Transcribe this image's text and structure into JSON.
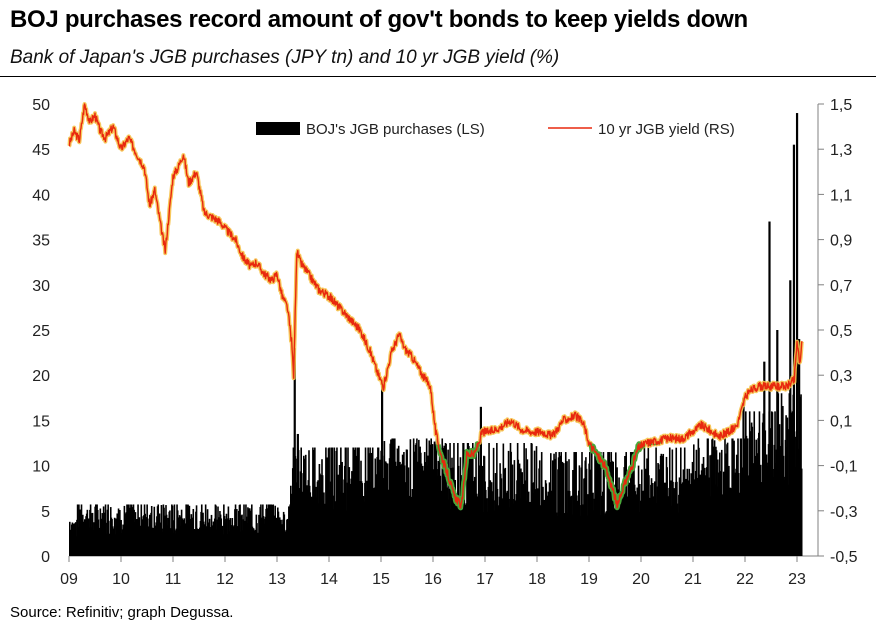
{
  "title": "BOJ purchases record amount of gov't bonds to keep yields down",
  "subtitle": "Bank of Japan's JGB purchases (JPY tn) and 10 yr JGB yield (%)",
  "source": "Source: Refinitiv; graph Degussa.",
  "colors": {
    "bars": "#000000",
    "line": "#e8280e",
    "line_glow": "#f6c24a",
    "line_glow_below_zero": "#49a83a",
    "axis": "#808080"
  },
  "chart_data": {
    "type": "bar+line",
    "legend": [
      {
        "key": "purchases",
        "label": "BOJ's JGB purchases (LS)"
      },
      {
        "key": "yield",
        "label": "10 yr JGB yield (RS)"
      }
    ],
    "legend_position": "top",
    "x_ticks": [
      "09",
      "10",
      "11",
      "12",
      "13",
      "14",
      "15",
      "16",
      "17",
      "18",
      "19",
      "20",
      "21",
      "22",
      "23"
    ],
    "xlim": [
      2009.0,
      2023.1
    ],
    "y_left": {
      "ylim": [
        0,
        50
      ],
      "ticks": [
        "0",
        "5",
        "10",
        "15",
        "20",
        "25",
        "30",
        "35",
        "40",
        "45",
        "50"
      ]
    },
    "y_right": {
      "ylim": [
        -0.5,
        1.5
      ],
      "ticks": [
        "-0,5",
        "-0,3",
        "-0,1",
        "0,1",
        "0,3",
        "0,5",
        "0,7",
        "0,9",
        "1,1",
        "1,3",
        "1,5"
      ]
    },
    "grid": false,
    "purchases_series": {
      "name": "BOJ's JGB purchases (LS)",
      "unit": "JPY tn",
      "segments": [
        {
          "from": 2009.0,
          "to": 2009.15,
          "typical": 3.5,
          "max": 4.0
        },
        {
          "from": 2009.15,
          "to": 2013.25,
          "typical": 4.0,
          "max": 5.7
        },
        {
          "from": 2013.25,
          "to": 2014.95,
          "typical": 8.0,
          "max": 12.0
        },
        {
          "from": 2014.95,
          "to": 2016.2,
          "typical": 10.0,
          "max": 13.0
        },
        {
          "from": 2016.2,
          "to": 2016.8,
          "typical": 8.5,
          "max": 12.5
        },
        {
          "from": 2016.8,
          "to": 2018.0,
          "typical": 8.0,
          "max": 12.5
        },
        {
          "from": 2018.0,
          "to": 2020.0,
          "typical": 7.0,
          "max": 11.5
        },
        {
          "from": 2020.0,
          "to": 2021.0,
          "typical": 8.0,
          "max": 12.0
        },
        {
          "from": 2021.0,
          "to": 2022.0,
          "typical": 9.0,
          "max": 13.0
        },
        {
          "from": 2022.0,
          "to": 2022.6,
          "typical": 10.0,
          "max": 16.0
        },
        {
          "from": 2022.6,
          "to": 2023.1,
          "typical": 12.0,
          "max": 18.0
        }
      ],
      "spikes": [
        {
          "x": 2013.32,
          "value": 23.0
        },
        {
          "x": 2013.38,
          "value": 13.5
        },
        {
          "x": 2015.0,
          "value": 19.5
        },
        {
          "x": 2016.9,
          "value": 16.5
        },
        {
          "x": 2021.95,
          "value": 17.5
        },
        {
          "x": 2022.35,
          "value": 21.5
        },
        {
          "x": 2022.45,
          "value": 37.0
        },
        {
          "x": 2022.6,
          "value": 25.0
        },
        {
          "x": 2022.85,
          "value": 30.5
        },
        {
          "x": 2022.92,
          "value": 45.5
        },
        {
          "x": 2022.98,
          "value": 49.0
        },
        {
          "x": 2023.02,
          "value": 24.0
        }
      ]
    },
    "yield_series": {
      "name": "10 yr JGB yield (RS)",
      "unit": "%",
      "x": [
        2009.0,
        2009.1,
        2009.2,
        2009.3,
        2009.4,
        2009.5,
        2009.6,
        2009.7,
        2009.85,
        2010.0,
        2010.15,
        2010.3,
        2010.45,
        2010.55,
        2010.65,
        2010.75,
        2010.85,
        2011.0,
        2011.1,
        2011.2,
        2011.3,
        2011.45,
        2011.6,
        2011.75,
        2011.9,
        2012.0,
        2012.2,
        2012.35,
        2012.5,
        2012.6,
        2012.75,
        2012.9,
        2013.0,
        2013.1,
        2013.2,
        2013.28,
        2013.32,
        2013.38,
        2013.45,
        2013.6,
        2013.8,
        2014.0,
        2014.2,
        2014.4,
        2014.6,
        2014.8,
        2014.95,
        2015.05,
        2015.2,
        2015.35,
        2015.45,
        2015.6,
        2015.8,
        2015.95,
        2016.05,
        2016.15,
        2016.3,
        2016.4,
        2016.55,
        2016.65,
        2016.8,
        2016.95,
        2017.1,
        2017.3,
        2017.5,
        2017.7,
        2017.9,
        2018.1,
        2018.3,
        2018.5,
        2018.75,
        2018.9,
        2019.0,
        2019.15,
        2019.3,
        2019.45,
        2019.55,
        2019.65,
        2019.8,
        2019.95,
        2020.1,
        2020.3,
        2020.5,
        2020.8,
        2021.0,
        2021.15,
        2021.3,
        2021.5,
        2021.7,
        2021.85,
        2022.0,
        2022.1,
        2022.25,
        2022.4,
        2022.6,
        2022.8,
        2022.95,
        2023.0,
        2023.05,
        2023.1
      ],
      "y": [
        1.32,
        1.38,
        1.34,
        1.5,
        1.42,
        1.45,
        1.38,
        1.35,
        1.4,
        1.3,
        1.35,
        1.28,
        1.22,
        1.05,
        1.12,
        0.98,
        0.85,
        1.18,
        1.22,
        1.28,
        1.15,
        1.2,
        1.02,
        1.0,
        0.98,
        0.95,
        0.9,
        0.82,
        0.78,
        0.8,
        0.75,
        0.72,
        0.75,
        0.65,
        0.6,
        0.45,
        0.3,
        0.85,
        0.8,
        0.75,
        0.68,
        0.65,
        0.6,
        0.55,
        0.5,
        0.4,
        0.3,
        0.25,
        0.4,
        0.48,
        0.42,
        0.38,
        0.3,
        0.25,
        0.05,
        -0.05,
        -0.15,
        -0.23,
        -0.28,
        -0.05,
        -0.05,
        0.05,
        0.05,
        0.07,
        0.1,
        0.06,
        0.05,
        0.05,
        0.03,
        0.1,
        0.12,
        0.08,
        0.0,
        -0.05,
        -0.1,
        -0.2,
        -0.28,
        -0.2,
        -0.12,
        -0.02,
        0.0,
        0.01,
        0.02,
        0.02,
        0.05,
        0.08,
        0.06,
        0.03,
        0.05,
        0.08,
        0.2,
        0.23,
        0.25,
        0.25,
        0.25,
        0.25,
        0.28,
        0.45,
        0.35,
        0.45
      ]
    }
  }
}
